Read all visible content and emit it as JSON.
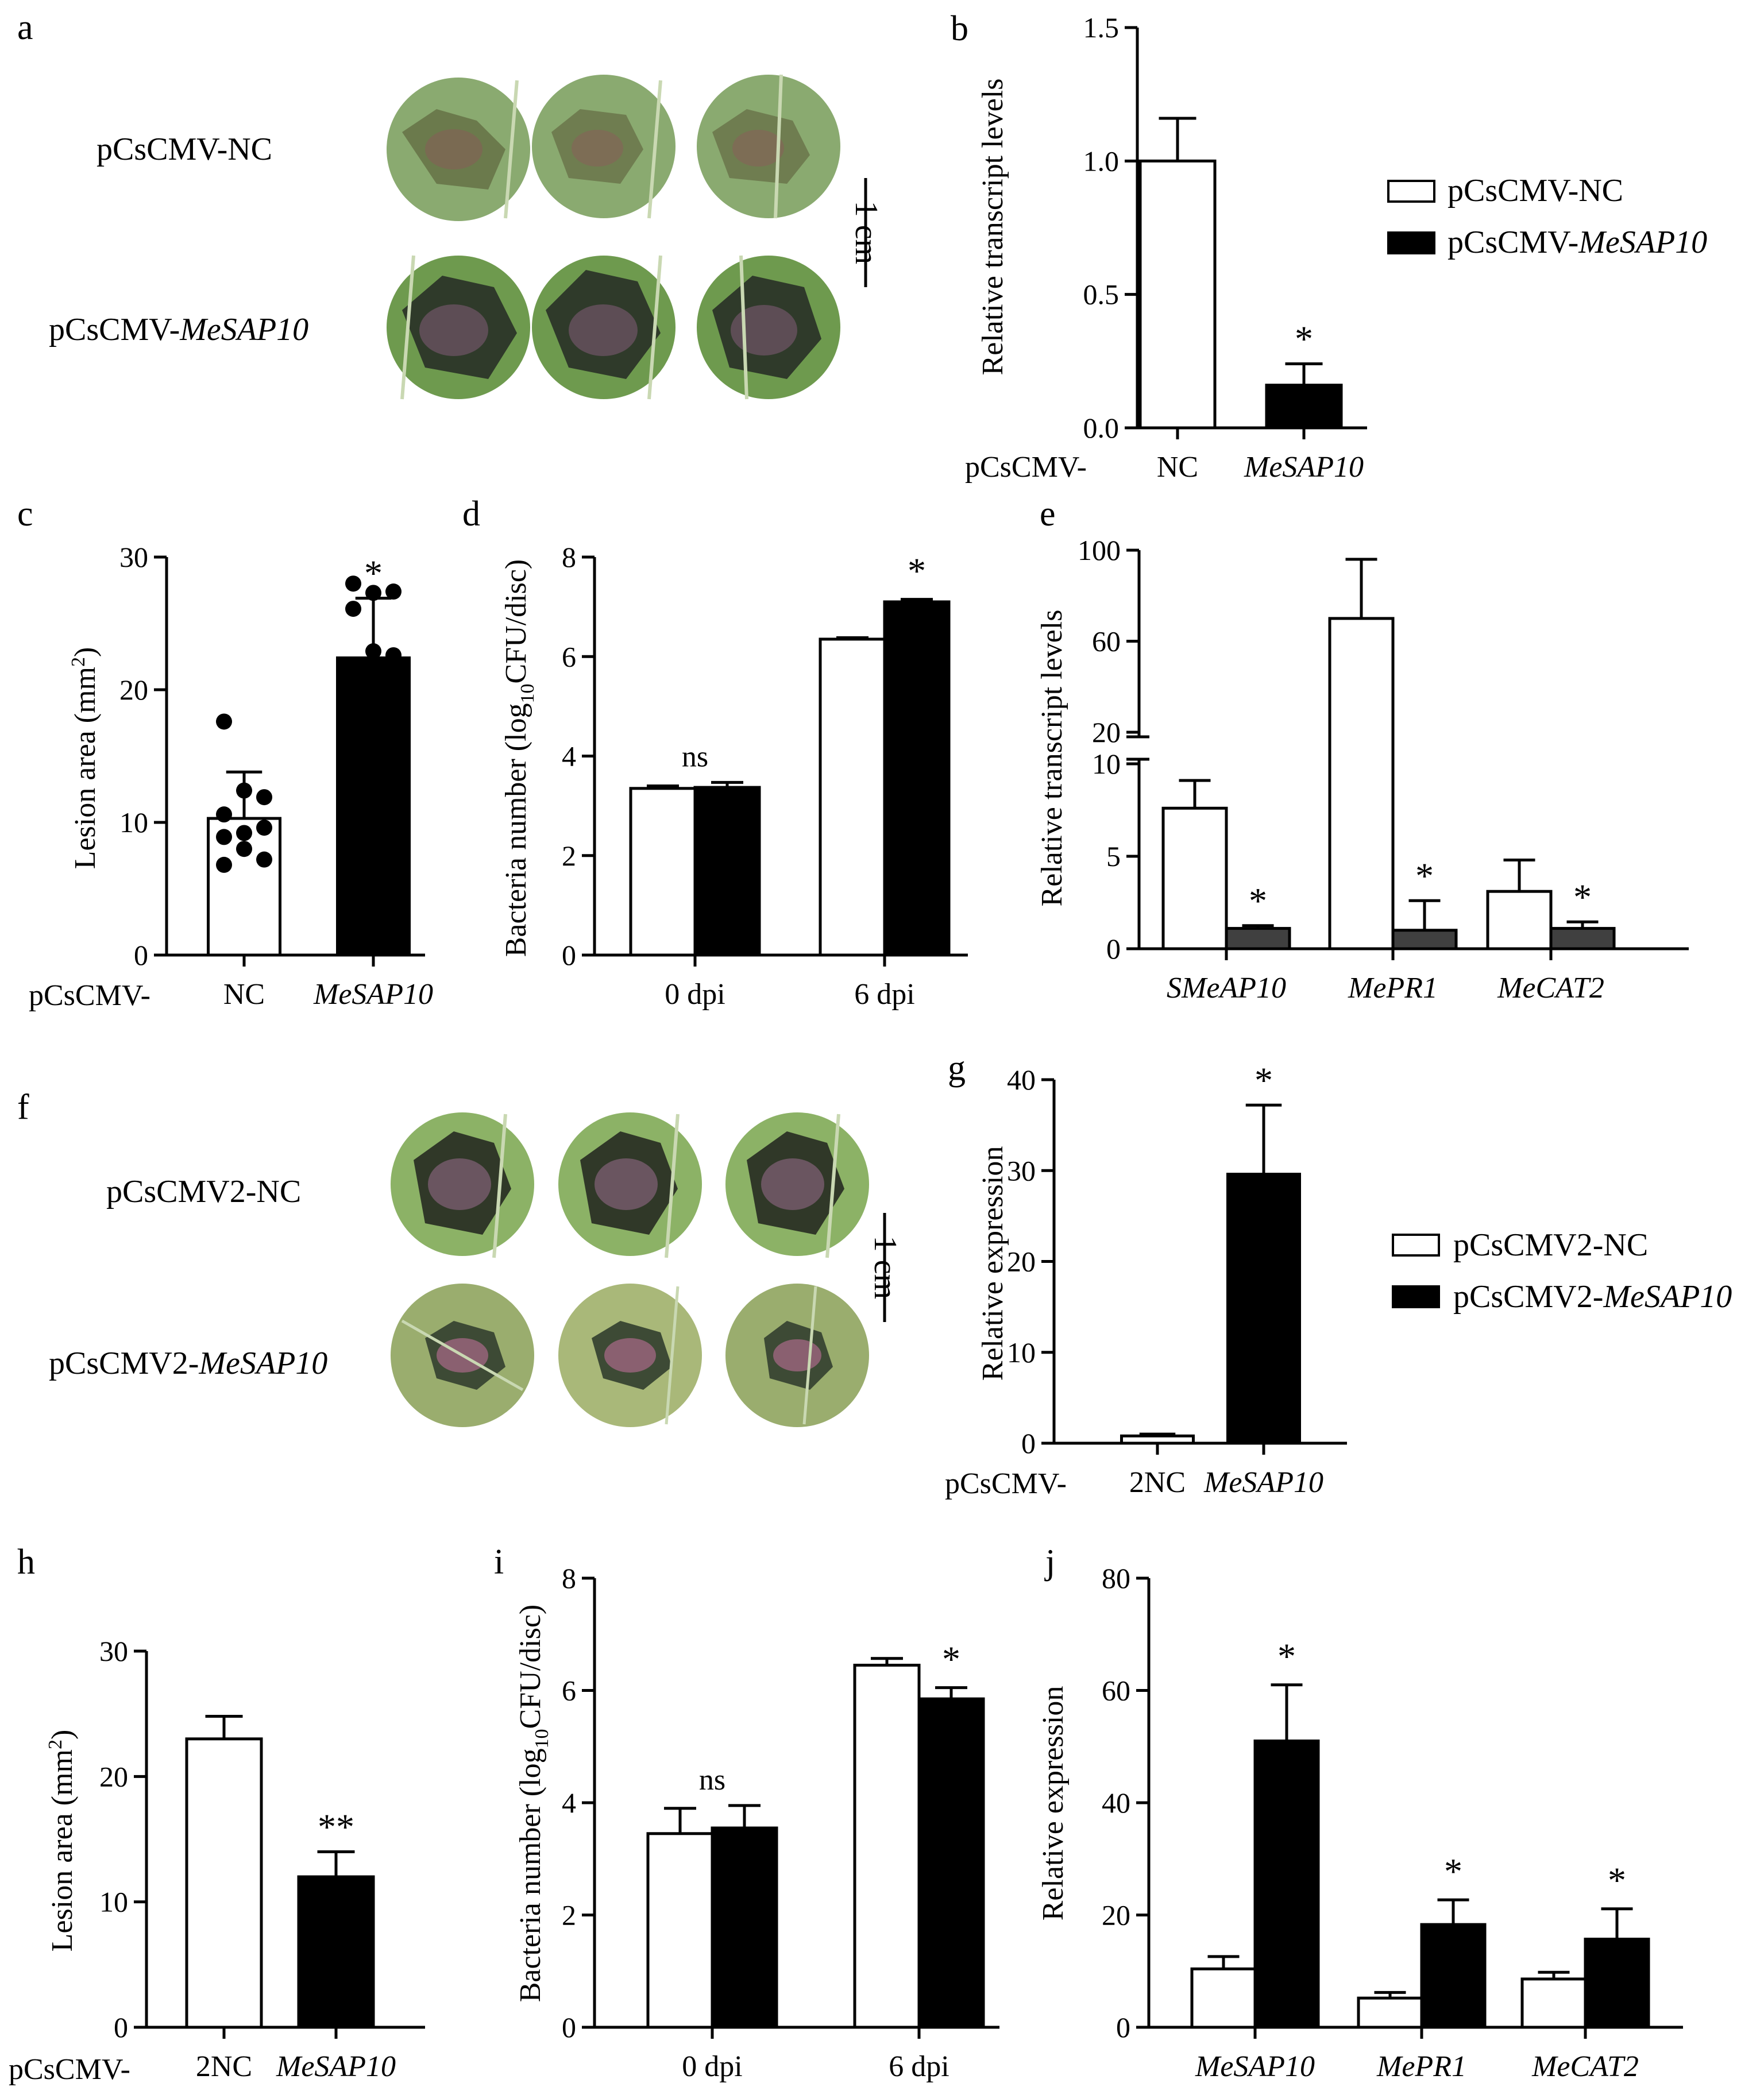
{
  "panels": {
    "a": {
      "letter": "a",
      "row_labels": [
        "pCsCMV-NC",
        "pCsCMV-"
      ],
      "row_label_italic": "MeSAP10",
      "scale_bar": "1 cm"
    },
    "f": {
      "letter": "f",
      "row_labels": [
        "pCsCMV2-NC",
        "pCsCMV2-"
      ],
      "row_label_italic": "MeSAP10",
      "scale_bar": "1 cm"
    }
  },
  "legends": {
    "b": [
      "pCsCMV-NC",
      "pCsCMV-",
      "MeSAP10"
    ],
    "g": [
      "pCsCMV2-NC",
      "pCsCMV2-",
      "MeSAP10"
    ]
  },
  "chart_data": [
    {
      "id": "b",
      "letter": "b",
      "type": "bar",
      "ylabel": "Relative transcript levels",
      "ylim": [
        0,
        1.5
      ],
      "yticks": [
        "0.0",
        "0.5",
        "1.0",
        "1.5"
      ],
      "xprefix": "pCsCMV-",
      "categories": [
        "NC",
        "MeSAP10"
      ],
      "category_italic": [
        false,
        true
      ],
      "values": [
        1.0,
        0.16
      ],
      "errors": [
        0.16,
        0.08
      ],
      "fills": [
        "#ffffff",
        "#000000"
      ],
      "annotations": [
        "",
        "*"
      ]
    },
    {
      "id": "c",
      "letter": "c",
      "type": "bar",
      "ylabel": "Lesion area (mm²)",
      "ylim": [
        0,
        30
      ],
      "yticks": [
        "0",
        "10",
        "20",
        "30"
      ],
      "xprefix": "pCsCMV-",
      "categories": [
        "NC",
        "MeSAP10"
      ],
      "category_italic": [
        false,
        true
      ],
      "values": [
        10.3,
        22.4
      ],
      "errors": [
        3.5,
        4.5
      ],
      "fills": [
        "#ffffff",
        "#000000"
      ],
      "annotations": [
        "",
        "*"
      ],
      "points": [
        [
          17.6,
          12.4,
          11.9,
          10.6,
          9.2,
          9.6,
          8.9,
          8.0,
          7.2,
          6.8
        ],
        [
          28.0,
          27.3,
          27.4,
          26.1,
          22.9,
          22.6
        ]
      ]
    },
    {
      "id": "d",
      "letter": "d",
      "type": "bar",
      "ylabel": "Bacteria number (log₁₀CFU/disc)",
      "ylim": [
        0,
        8
      ],
      "yticks": [
        "0",
        "2",
        "4",
        "6",
        "8"
      ],
      "categories": [
        "0 dpi",
        "6 dpi"
      ],
      "series": [
        {
          "values": [
            3.35,
            6.35
          ],
          "errors": [
            0.05,
            0.03
          ],
          "fill": "#ffffff"
        },
        {
          "values": [
            3.37,
            7.1
          ],
          "errors": [
            0.1,
            0.05
          ],
          "fill": "#000000"
        }
      ],
      "annotations": [
        "ns",
        "*"
      ]
    },
    {
      "id": "e",
      "letter": "e",
      "type": "bar",
      "broken_axis": true,
      "ylabel": "Relative transcript levels",
      "yticks": [
        "0",
        "5",
        "10",
        "20",
        "60",
        "100"
      ],
      "categories": [
        "SMeAP10",
        "MePR1",
        "MeCAT2"
      ],
      "series": [
        {
          "values": [
            7.6,
            70,
            3.1
          ],
          "errors": [
            1.5,
            26,
            1.7
          ],
          "fill": "#ffffff"
        },
        {
          "values": [
            1.1,
            1.0,
            1.1
          ],
          "errors": [
            0.15,
            1.6,
            0.35
          ],
          "fill": "#404040"
        }
      ],
      "annotations": [
        "*",
        "*",
        "*"
      ]
    },
    {
      "id": "g",
      "letter": "g",
      "type": "bar",
      "ylabel": "Relative expression",
      "ylim": [
        0,
        40
      ],
      "yticks": [
        "0",
        "10",
        "20",
        "30",
        "40"
      ],
      "xprefix": "pCsCMV-",
      "categories": [
        "2NC",
        "MeSAP10"
      ],
      "category_italic": [
        false,
        true
      ],
      "values": [
        0.8,
        29.6
      ],
      "errors": [
        0.2,
        7.6
      ],
      "fills": [
        "#ffffff",
        "#000000"
      ],
      "annotations": [
        "",
        "*"
      ]
    },
    {
      "id": "h",
      "letter": "h",
      "type": "bar",
      "ylabel": "Lesion area (mm²)",
      "ylim": [
        0,
        30
      ],
      "yticks": [
        "0",
        "10",
        "20",
        "30"
      ],
      "xprefix": "pCsCMV-",
      "categories": [
        "2NC",
        "MeSAP10"
      ],
      "category_italic": [
        false,
        true
      ],
      "values": [
        23.0,
        12.0
      ],
      "errors": [
        1.8,
        2.0
      ],
      "fills": [
        "#ffffff",
        "#000000"
      ],
      "annotations": [
        "",
        "**"
      ]
    },
    {
      "id": "i",
      "letter": "i",
      "type": "bar",
      "ylabel": "Bacteria number (log₁₀CFU/disc)",
      "ylim": [
        0,
        8
      ],
      "yticks": [
        "0",
        "2",
        "4",
        "6",
        "8"
      ],
      "categories": [
        "0 dpi",
        "6 dpi"
      ],
      "series": [
        {
          "values": [
            3.45,
            6.45
          ],
          "errors": [
            0.45,
            0.12
          ],
          "fill": "#ffffff"
        },
        {
          "values": [
            3.55,
            5.85
          ],
          "errors": [
            0.4,
            0.2
          ],
          "fill": "#000000"
        }
      ],
      "annotations": [
        "ns",
        "*"
      ]
    },
    {
      "id": "j",
      "letter": "j",
      "type": "bar",
      "ylabel": "Relative expression",
      "ylim": [
        0,
        80
      ],
      "yticks": [
        "0",
        "20",
        "40",
        "60",
        "80"
      ],
      "categories": [
        "MeSAP10",
        "MePR1",
        "MeCAT2"
      ],
      "series": [
        {
          "values": [
            10.4,
            5.2,
            8.6
          ],
          "errors": [
            2.2,
            1.0,
            1.2
          ],
          "fill": "#ffffff"
        },
        {
          "values": [
            51.0,
            18.3,
            15.7
          ],
          "errors": [
            10.0,
            4.4,
            5.4
          ],
          "fill": "#000000"
        }
      ],
      "annotations": [
        "*",
        "*",
        "*"
      ]
    }
  ]
}
